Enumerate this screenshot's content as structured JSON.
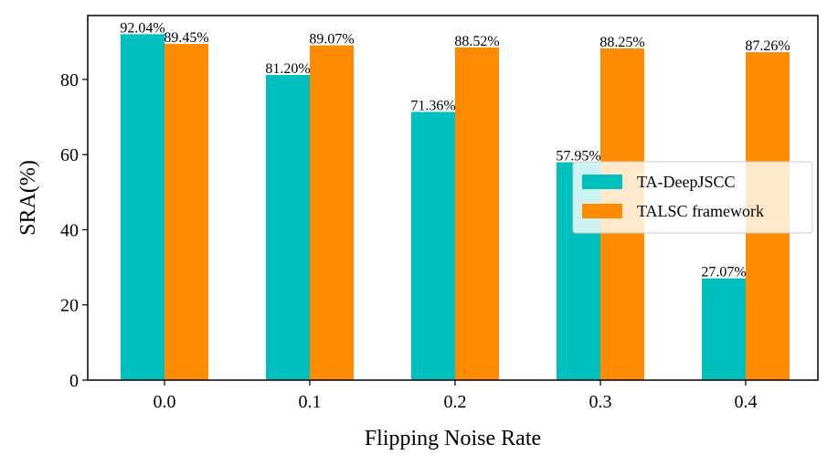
{
  "chart_data": {
    "type": "bar",
    "title": "",
    "xlabel": "Flipping Noise Rate",
    "ylabel": "SRA(%)",
    "categories": [
      "0.0",
      "0.1",
      "0.2",
      "0.3",
      "0.4"
    ],
    "ylim": [
      0,
      97
    ],
    "yticks": [
      "0",
      "20",
      "40",
      "60",
      "80"
    ],
    "series": [
      {
        "name": "TA-DeepJSCC",
        "color": "#00bfbf",
        "values": [
          92.04,
          81.2,
          71.36,
          57.95,
          27.07
        ],
        "labels": [
          "92.04%",
          "81.20%",
          "71.36%",
          "57.95%",
          "27.07%"
        ]
      },
      {
        "name": "TALSC framework",
        "color": "#ff8c00",
        "values": [
          89.45,
          89.07,
          88.52,
          88.25,
          87.26
        ],
        "labels": [
          "89.45%",
          "89.07%",
          "88.52%",
          "88.25%",
          "87.26%"
        ]
      }
    ],
    "legend": {
      "position": "center-right",
      "entries": [
        "TA-DeepJSCC",
        "TALSC framework"
      ]
    },
    "grid": false
  }
}
